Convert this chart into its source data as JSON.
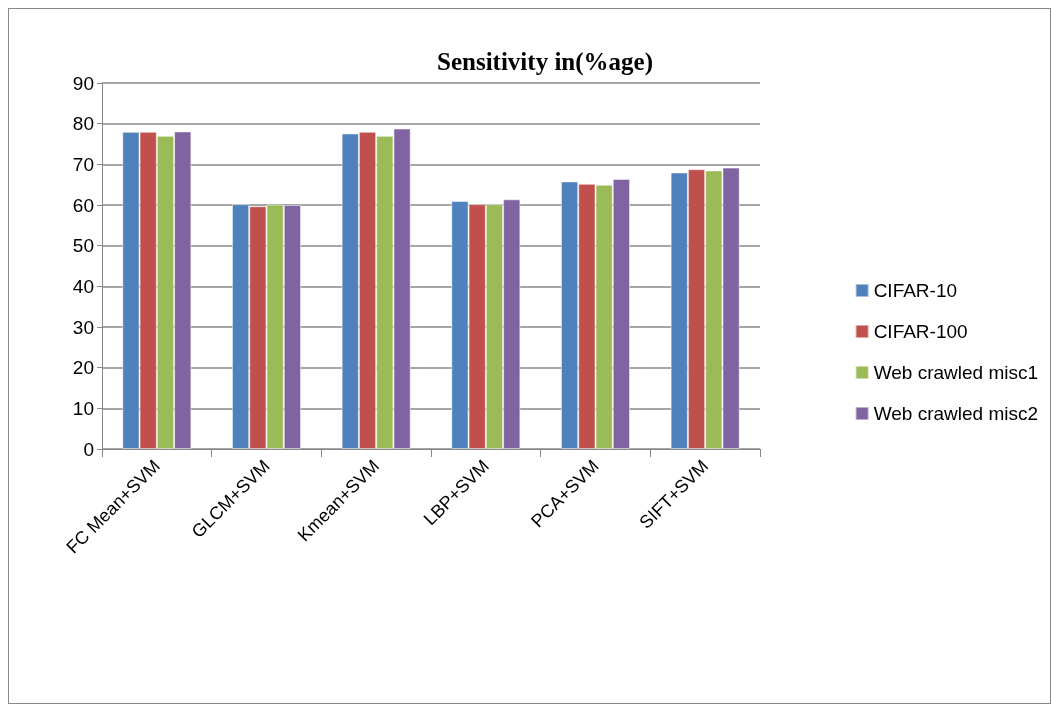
{
  "chart_data": {
    "type": "bar",
    "title": "Sensitivity in(%age)",
    "categories": [
      "FC Mean+SVM",
      "GLCM+SVM",
      "Kmean+SVM",
      "LBP+SVM",
      "PCA+SVM",
      "SIFT+SVM"
    ],
    "series": [
      {
        "name": "CIFAR-10",
        "color": "#4f81bd",
        "values": [
          78,
          60.2,
          77.6,
          61,
          65.8,
          68
        ]
      },
      {
        "name": "CIFAR-100",
        "color": "#c0504d",
        "values": [
          78,
          59.7,
          78,
          60.2,
          65.2,
          68.8
        ]
      },
      {
        "name": "Web crawled misc1",
        "color": "#9bbb59",
        "values": [
          77,
          60.1,
          77,
          60.2,
          65,
          68.5
        ]
      },
      {
        "name": "Web crawled misc2",
        "color": "#8064a2",
        "values": [
          78.1,
          60,
          78.8,
          61.4,
          66.4,
          69.2
        ]
      }
    ],
    "ylim": [
      0,
      90
    ],
    "yticks": [
      0,
      10,
      20,
      30,
      40,
      50,
      60,
      70,
      80,
      90
    ],
    "grid": "y",
    "legend": "right"
  }
}
